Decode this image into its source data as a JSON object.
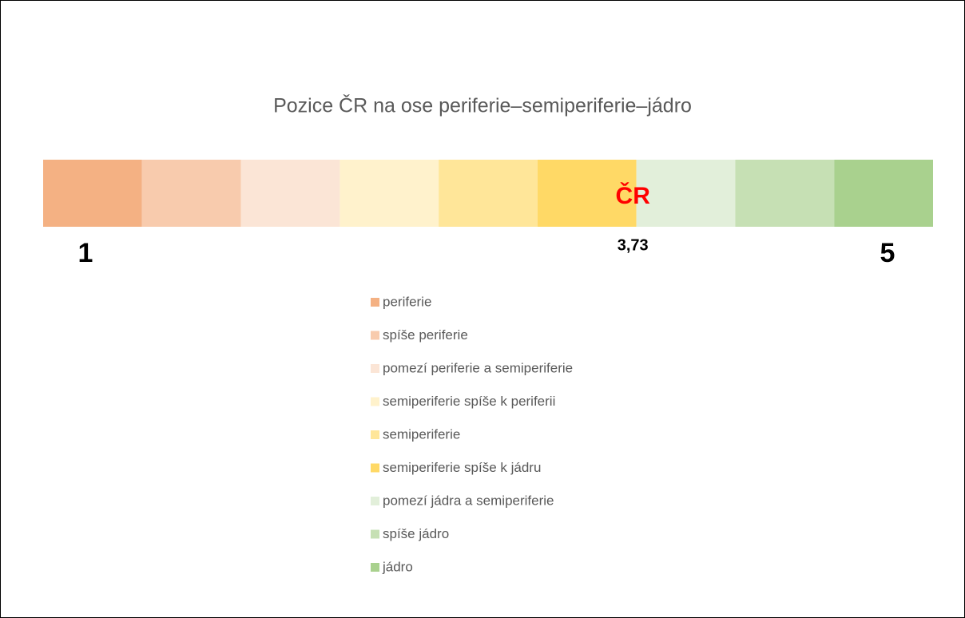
{
  "chart_data": {
    "type": "bar",
    "orientation": "horizontal",
    "stacked": true,
    "title": "Pozice ČR na ose periferie–semiperiferie–jádro",
    "xlim": [
      0,
      9
    ],
    "series": [
      {
        "name": "periferie",
        "color": "#f4b183",
        "values": [
          1
        ]
      },
      {
        "name": "spíše periferie",
        "color": "#f8cbad",
        "values": [
          1
        ]
      },
      {
        "name": "pomezí periferie a semiperiferie",
        "color": "#fbe5d6",
        "values": [
          1
        ]
      },
      {
        "name": "semiperiferie spíše k periferii",
        "color": "#fff2cc",
        "values": [
          1
        ]
      },
      {
        "name": "semiperiferie",
        "color": "#ffe699",
        "values": [
          1
        ]
      },
      {
        "name": "semiperiferie spíše k jádru",
        "color": "#ffd966",
        "values": [
          1
        ]
      },
      {
        "name": "pomezí jádra a semiperiferie",
        "color": "#e2efda",
        "values": [
          1
        ]
      },
      {
        "name": "spíše jádro",
        "color": "#c6e0b4",
        "values": [
          1
        ]
      },
      {
        "name": "jádro",
        "color": "#a9d18e",
        "values": [
          1
        ]
      }
    ],
    "scale": {
      "lim": [
        1,
        5
      ],
      "ticks": [
        1,
        5
      ]
    },
    "marker": {
      "name": "ČR",
      "value": 3.73,
      "label": "3,73",
      "color": "#ff0000"
    },
    "legend": "bottom"
  }
}
